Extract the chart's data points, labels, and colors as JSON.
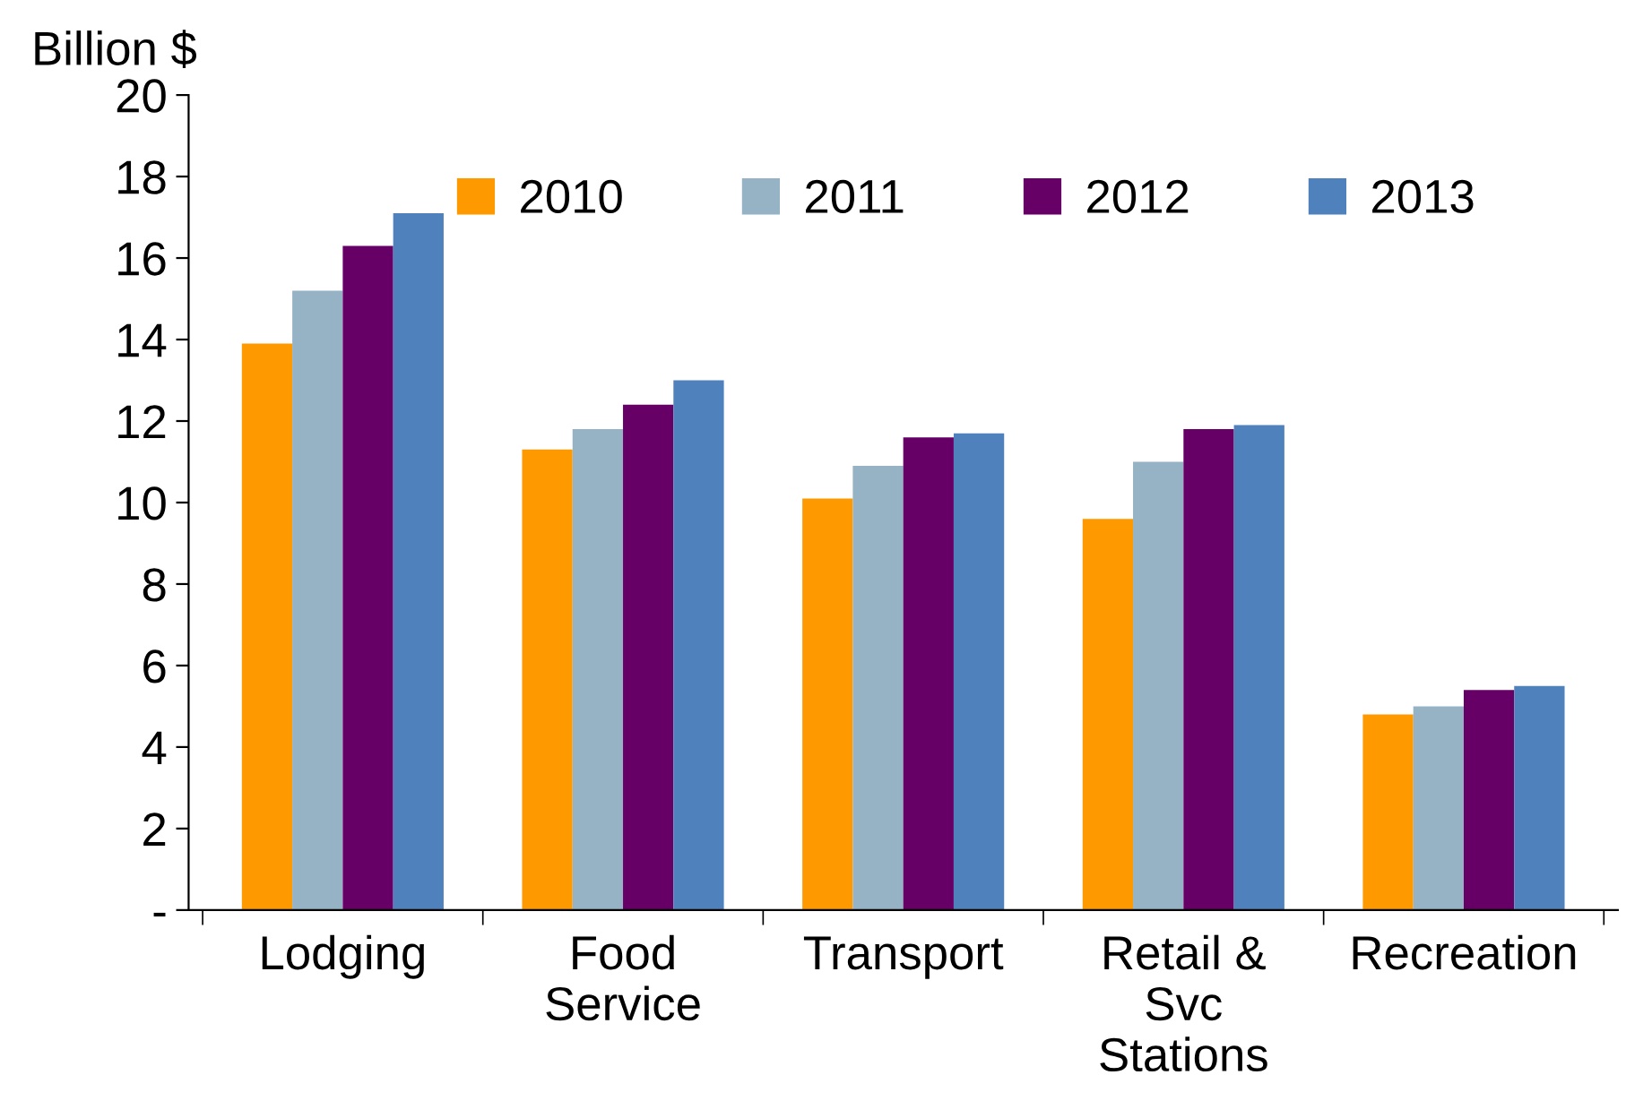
{
  "chart_data": {
    "type": "bar",
    "ylabel": "Billion $",
    "categories": [
      "Lodging",
      "Food\nService",
      "Transport",
      "Retail &\nSvc\nStations",
      "Recreation"
    ],
    "series": [
      {
        "name": "2010",
        "color": "#ff9900",
        "values": [
          13.9,
          11.3,
          10.1,
          9.6,
          4.8
        ]
      },
      {
        "name": "2011",
        "color": "#95b3c4",
        "values": [
          15.2,
          11.8,
          10.9,
          11.0,
          5.0
        ]
      },
      {
        "name": "2012",
        "color": "#660066",
        "values": [
          16.3,
          12.4,
          11.6,
          11.8,
          5.4
        ]
      },
      {
        "name": "2013",
        "color": "#4f81bd",
        "values": [
          17.1,
          13.0,
          11.7,
          11.9,
          5.5
        ]
      }
    ],
    "ylim": [
      0,
      20
    ],
    "yticks": [
      {
        "value": 0,
        "label": "-"
      },
      2,
      4,
      6,
      8,
      10,
      12,
      14,
      16,
      18,
      20
    ],
    "grid": false,
    "legend": "top right"
  }
}
